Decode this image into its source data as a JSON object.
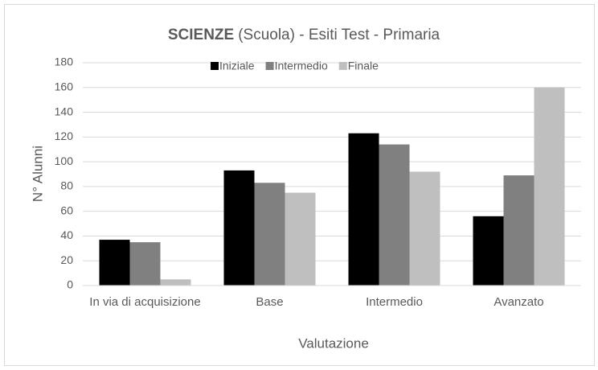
{
  "chart_data": {
    "type": "bar",
    "title_bold": "SCIENZE",
    "title": "(Scuola) - Esiti Test - Primaria",
    "x_label": "Valutazione",
    "y_label": "N° Alunni",
    "categories": [
      "In via di acquisizione",
      "Base",
      "Intermedio",
      "Avanzato"
    ],
    "series": [
      {
        "name": "Iniziale",
        "color": "#000000",
        "values": [
          37,
          93,
          123,
          56
        ]
      },
      {
        "name": "Intermedio",
        "color": "#808080",
        "values": [
          35,
          83,
          114,
          89
        ]
      },
      {
        "name": "Finale",
        "color": "#bfbfbf",
        "values": [
          5,
          75,
          92,
          160
        ]
      }
    ],
    "ylim": [
      0,
      180
    ],
    "yticks": [
      0,
      20,
      40,
      60,
      80,
      100,
      120,
      140,
      160,
      180
    ],
    "grid": true,
    "legend": "top"
  }
}
